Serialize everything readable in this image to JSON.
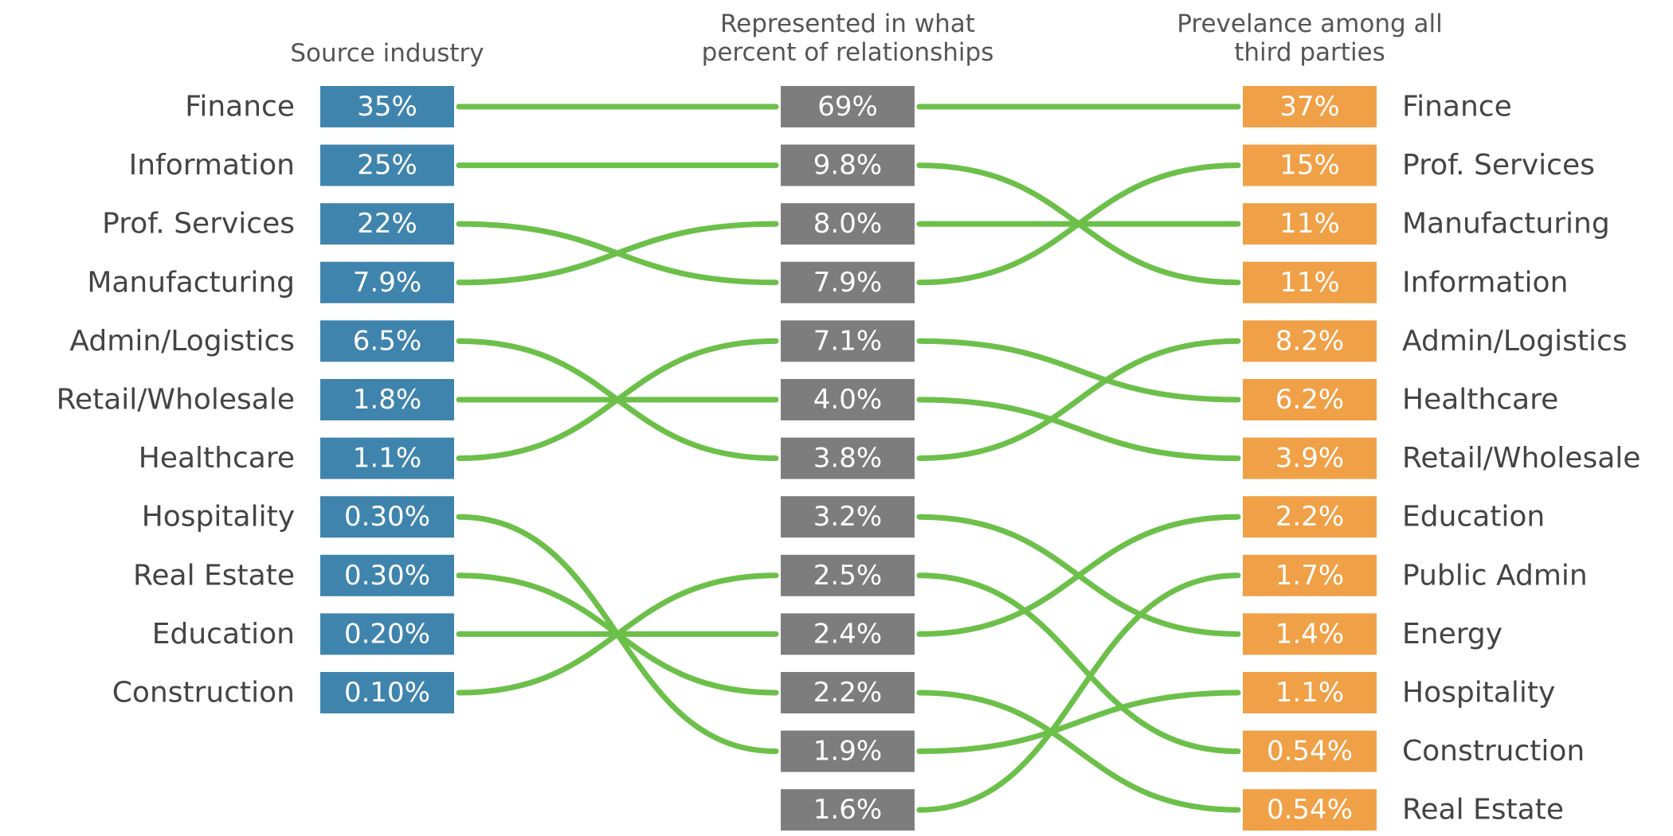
{
  "chart_data": {
    "type": "sankey",
    "headers": {
      "source": "Source industry",
      "middle": [
        "Represented in what",
        "percent of relationships"
      ],
      "target": [
        "Prevelance among all",
        "third parties"
      ]
    },
    "colors": {
      "source": "#3f84ad",
      "middle": "#7d7d7d",
      "target": "#f0a046",
      "connector": "#6cc04a"
    },
    "source_column": [
      {
        "label": "Finance",
        "value": "35%"
      },
      {
        "label": "Information",
        "value": "25%"
      },
      {
        "label": "Prof. Services",
        "value": "22%"
      },
      {
        "label": "Manufacturing",
        "value": "7.9%"
      },
      {
        "label": "Admin/Logistics",
        "value": "6.5%"
      },
      {
        "label": "Retail/Wholesale",
        "value": "1.8%"
      },
      {
        "label": "Healthcare",
        "value": "1.1%"
      },
      {
        "label": "Hospitality",
        "value": "0.30%"
      },
      {
        "label": "Real Estate",
        "value": "0.30%"
      },
      {
        "label": "Education",
        "value": "0.20%"
      },
      {
        "label": "Construction",
        "value": "0.10%"
      }
    ],
    "middle_column": [
      "69%",
      "9.8%",
      "8.0%",
      "7.9%",
      "7.1%",
      "4.0%",
      "3.8%",
      "3.2%",
      "2.5%",
      "2.4%",
      "2.2%",
      "1.9%",
      "1.6%"
    ],
    "target_column": [
      {
        "label": "Finance",
        "value": "37%"
      },
      {
        "label": "Prof. Services",
        "value": "15%"
      },
      {
        "label": "Manufacturing",
        "value": "11%"
      },
      {
        "label": "Information",
        "value": "11%"
      },
      {
        "label": "Admin/Logistics",
        "value": "8.2%"
      },
      {
        "label": "Healthcare",
        "value": "6.2%"
      },
      {
        "label": "Retail/Wholesale",
        "value": "3.9%"
      },
      {
        "label": "Education",
        "value": "2.2%"
      },
      {
        "label": "Public Admin",
        "value": "1.7%"
      },
      {
        "label": "Energy",
        "value": "1.4%"
      },
      {
        "label": "Hospitality",
        "value": "1.1%"
      },
      {
        "label": "Construction",
        "value": "0.54%"
      },
      {
        "label": "Real Estate",
        "value": "0.54%"
      }
    ],
    "source_links": [
      [
        0,
        0
      ],
      [
        1,
        1
      ],
      [
        2,
        3
      ],
      [
        3,
        2
      ],
      [
        4,
        6
      ],
      [
        5,
        5
      ],
      [
        6,
        4
      ],
      [
        7,
        11
      ],
      [
        8,
        10
      ],
      [
        9,
        9
      ],
      [
        10,
        8
      ]
    ],
    "target_links": [
      [
        0,
        0
      ],
      [
        1,
        3
      ],
      [
        2,
        2
      ],
      [
        3,
        1
      ],
      [
        4,
        5
      ],
      [
        5,
        6
      ],
      [
        6,
        4
      ],
      [
        7,
        9
      ],
      [
        8,
        11
      ],
      [
        9,
        7
      ],
      [
        10,
        12
      ],
      [
        11,
        10
      ],
      [
        12,
        8
      ]
    ]
  }
}
